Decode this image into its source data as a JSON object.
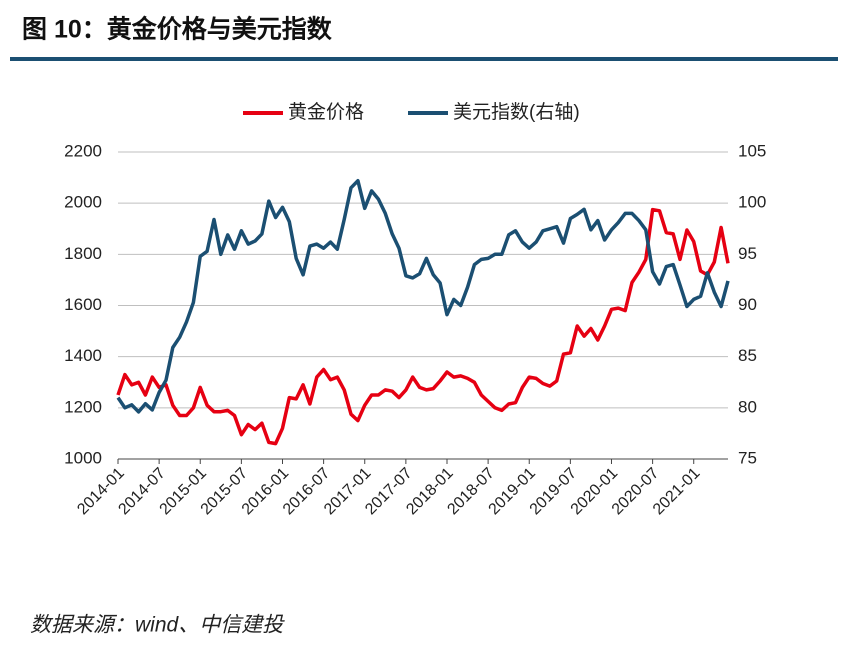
{
  "chart_data": {
    "type": "line",
    "title": "图 10：黄金价格与美元指数",
    "source": "数据来源：wind、中信建投",
    "categories": [
      "2014-01",
      null,
      null,
      null,
      null,
      null,
      "2014-07",
      null,
      null,
      null,
      null,
      null,
      "2015-01",
      null,
      null,
      null,
      null,
      null,
      "2015-07",
      null,
      null,
      null,
      null,
      null,
      "2016-01",
      null,
      null,
      null,
      null,
      null,
      "2016-07",
      null,
      null,
      null,
      null,
      null,
      "2017-01",
      null,
      null,
      null,
      null,
      null,
      "2017-07",
      null,
      null,
      null,
      null,
      null,
      "2018-01",
      null,
      null,
      null,
      null,
      null,
      "2018-07",
      null,
      null,
      null,
      null,
      null,
      "2019-01",
      null,
      null,
      null,
      null,
      null,
      "2019-07",
      null,
      null,
      null,
      null,
      null,
      "2020-01",
      null,
      null,
      null,
      null,
      null,
      "2020-07",
      null,
      null,
      null,
      null,
      null,
      "2021-01",
      null,
      null,
      null,
      null,
      null
    ],
    "series": [
      {
        "name": "黄金价格",
        "color": "#e60012",
        "values": [
          1250,
          1330,
          1290,
          1300,
          1250,
          1320,
          1280,
          1290,
          1210,
          1170,
          1170,
          1200,
          1280,
          1210,
          1185,
          1185,
          1190,
          1170,
          1095,
          1135,
          1115,
          1140,
          1065,
          1060,
          1120,
          1240,
          1235,
          1290,
          1215,
          1320,
          1350,
          1310,
          1320,
          1270,
          1175,
          1150,
          1210,
          1250,
          1250,
          1270,
          1265,
          1240,
          1270,
          1320,
          1280,
          1270,
          1275,
          1305,
          1340,
          1320,
          1325,
          1315,
          1300,
          1250,
          1225,
          1200,
          1190,
          1215,
          1220,
          1280,
          1320,
          1315,
          1295,
          1285,
          1305,
          1410,
          1415,
          1520,
          1480,
          1510,
          1465,
          1520,
          1585,
          1590,
          1580,
          1690,
          1730,
          1780,
          1975,
          1970,
          1885,
          1880,
          1780,
          1895,
          1850,
          1735,
          1720,
          1770,
          1905,
          1765
        ]
      },
      {
        "name": "美元指数(右轴)",
        "color": "#1b4f72",
        "axis": "y2",
        "values": [
          81,
          80,
          80.3,
          79.6,
          80.4,
          79.8,
          81.5,
          82.7,
          85.9,
          86.9,
          88.4,
          90.3,
          94.8,
          95.3,
          98.4,
          95,
          96.9,
          95.5,
          97.3,
          96,
          96.3,
          97,
          100.2,
          98.6,
          99.6,
          98.2,
          94.6,
          93,
          95.8,
          96,
          95.6,
          96.2,
          95.5,
          98.4,
          101.5,
          102.2,
          99.5,
          101.2,
          100.4,
          99,
          97,
          95.6,
          92.9,
          92.7,
          93.1,
          94.6,
          93,
          92.2,
          89.1,
          90.6,
          90,
          91.8,
          94,
          94.5,
          94.6,
          95,
          95,
          96.9,
          97.3,
          96.2,
          95.6,
          96.2,
          97.3,
          97.5,
          97.7,
          96.1,
          98.5,
          98.9,
          99.4,
          97.4,
          98.3,
          96.4,
          97.4,
          98.1,
          99,
          99,
          98.3,
          97.4,
          93.3,
          92.1,
          93.8,
          94,
          92,
          89.9,
          90.6,
          90.9,
          93.2,
          91.3,
          89.9,
          92.4
        ]
      }
    ],
    "ylim": [
      1000,
      2200
    ],
    "yticks": [
      1000,
      1200,
      1400,
      1600,
      1800,
      2000,
      2200
    ],
    "y2lim": [
      75,
      105
    ],
    "y2ticks": [
      75,
      80,
      85,
      90,
      95,
      100,
      105
    ],
    "grid": true
  }
}
